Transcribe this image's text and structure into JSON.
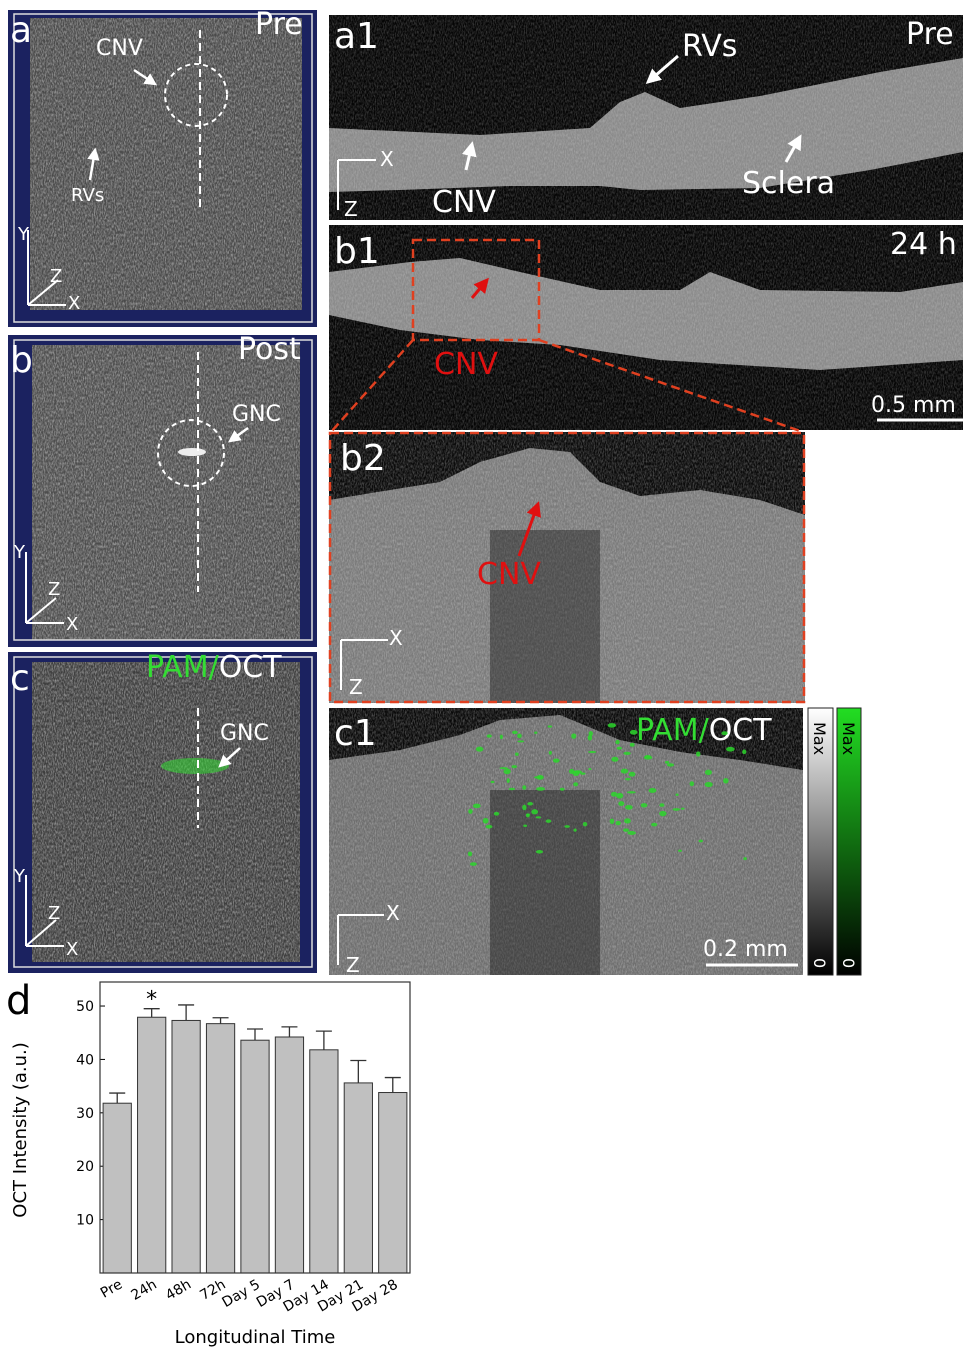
{
  "axis_labels": {
    "x": "X",
    "y": "Y",
    "z": "Z"
  },
  "panel_a": {
    "label": "a",
    "condition": "Pre",
    "cnv": "CNV",
    "rvs": "RVs"
  },
  "panel_b": {
    "label": "b",
    "condition": "Post",
    "gnc": "GNC"
  },
  "panel_c": {
    "label": "c",
    "pam": "PAM/",
    "oct": "OCT",
    "gnc": "GNC"
  },
  "panel_a1": {
    "label": "a1",
    "condition": "Pre",
    "rvs": "RVs",
    "cnv": "CNV",
    "sclera": "Sclera"
  },
  "panel_b1": {
    "label": "b1",
    "condition": "24 h",
    "cnv": "CNV",
    "scale_bar": "0.5 mm"
  },
  "panel_b2": {
    "label": "b2",
    "cnv": "CNV"
  },
  "panel_c1": {
    "label": "c1",
    "pam": "PAM/",
    "oct": "OCT",
    "scale_bar": "0.2 mm",
    "colorbar_max": "Max",
    "colorbar_min": "0"
  },
  "chart_data": {
    "type": "bar",
    "panel_label": "d",
    "x_label": "Longitudinal Time",
    "y_label": "OCT Intensity (a.u.)",
    "categories": [
      "Pre",
      "24h",
      "48h",
      "72h",
      "Day 5",
      "Day 7",
      "Day 14",
      "Day 21",
      "Day 28"
    ],
    "values": [
      31.8,
      47.9,
      47.3,
      46.7,
      43.6,
      44.2,
      41.8,
      35.6,
      33.8
    ],
    "errors": [
      1.9,
      1.6,
      2.9,
      1.1,
      2.1,
      1.9,
      3.5,
      4.2,
      2.8
    ],
    "color": "#c0c0c0",
    "ylim": [
      0,
      54.5
    ],
    "yticks": [
      10,
      20,
      30,
      40,
      50
    ],
    "annotation": "*",
    "annotation_category": 1
  }
}
